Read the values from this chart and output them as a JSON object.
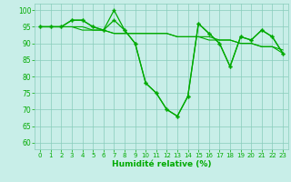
{
  "title": "",
  "xlabel": "Humidité relative (%)",
  "ylabel": "",
  "bg_color": "#c8eee8",
  "grid_color": "#88ccbb",
  "line_color": "#00aa00",
  "marker": "+",
  "xlim": [
    -0.5,
    23.5
  ],
  "ylim": [
    58,
    102
  ],
  "yticks": [
    60,
    65,
    70,
    75,
    80,
    85,
    90,
    95,
    100
  ],
  "xticks": [
    0,
    1,
    2,
    3,
    4,
    5,
    6,
    7,
    8,
    9,
    10,
    11,
    12,
    13,
    14,
    15,
    16,
    17,
    18,
    19,
    20,
    21,
    22,
    23
  ],
  "series1": [
    95,
    95,
    95,
    97,
    97,
    95,
    94,
    100,
    94,
    90,
    78,
    75,
    70,
    68,
    74,
    96,
    93,
    90,
    83,
    92,
    91,
    94,
    92,
    87
  ],
  "series2": [
    95,
    95,
    95,
    97,
    97,
    95,
    94,
    97,
    94,
    90,
    78,
    75,
    70,
    68,
    74,
    96,
    93,
    90,
    83,
    92,
    91,
    94,
    92,
    87
  ],
  "series3": [
    95,
    95,
    95,
    95,
    95,
    94,
    94,
    93,
    93,
    93,
    93,
    93,
    93,
    92,
    92,
    92,
    92,
    91,
    91,
    90,
    90,
    89,
    89,
    88
  ],
  "series4": [
    95,
    95,
    95,
    95,
    94,
    94,
    94,
    93,
    93,
    93,
    93,
    93,
    93,
    92,
    92,
    92,
    91,
    91,
    91,
    90,
    90,
    89,
    89,
    87
  ]
}
